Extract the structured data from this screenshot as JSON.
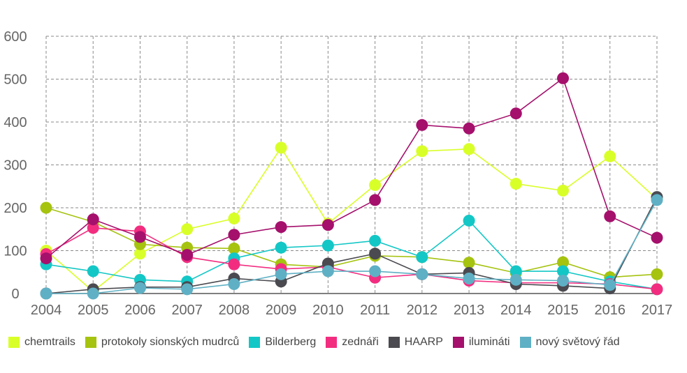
{
  "chart_data": {
    "type": "line",
    "title": "",
    "xlabel": "",
    "ylabel": "",
    "ylim": [
      0,
      600
    ],
    "yticks": [
      0,
      100,
      200,
      300,
      400,
      500,
      600
    ],
    "grid": true,
    "legend_position": "bottom",
    "categories": [
      "2004",
      "2005",
      "2006",
      "2007",
      "2008",
      "2009",
      "2010",
      "2011",
      "2012",
      "2013",
      "2014",
      "2015",
      "2016",
      "2017"
    ],
    "series": [
      {
        "name": "chemtrails",
        "color": "#d9ff29",
        "values": [
          100,
          5,
          93,
          150,
          175,
          340,
          163,
          253,
          332,
          337,
          256,
          240,
          320,
          220
        ]
      },
      {
        "name": "protokoly sionských mudrců",
        "color": "#a5c30f",
        "values": [
          200,
          167,
          115,
          107,
          105,
          68,
          62,
          88,
          85,
          72,
          48,
          73,
          38,
          45
        ]
      },
      {
        "name": "Bilderberg",
        "color": "#13c7c6",
        "values": [
          68,
          52,
          32,
          28,
          82,
          107,
          112,
          123,
          85,
          170,
          52,
          52,
          28,
          10
        ]
      },
      {
        "name": "zednáři",
        "color": "#f22d80",
        "values": [
          92,
          153,
          145,
          85,
          68,
          57,
          62,
          37,
          45,
          30,
          25,
          25,
          22,
          10
        ]
      },
      {
        "name": "HAARP",
        "color": "#4a4a50",
        "values": [
          0,
          10,
          15,
          15,
          35,
          28,
          70,
          93,
          45,
          48,
          22,
          18,
          12,
          225
        ]
      },
      {
        "name": "ilumináti",
        "color": "#a5106c",
        "values": [
          82,
          173,
          132,
          90,
          137,
          155,
          160,
          218,
          393,
          385,
          420,
          502,
          180,
          130
        ]
      },
      {
        "name": "nový světový řád",
        "color": "#5fb0c4",
        "values": [
          0,
          0,
          13,
          10,
          22,
          45,
          52,
          52,
          45,
          35,
          32,
          30,
          20,
          218
        ]
      }
    ]
  }
}
